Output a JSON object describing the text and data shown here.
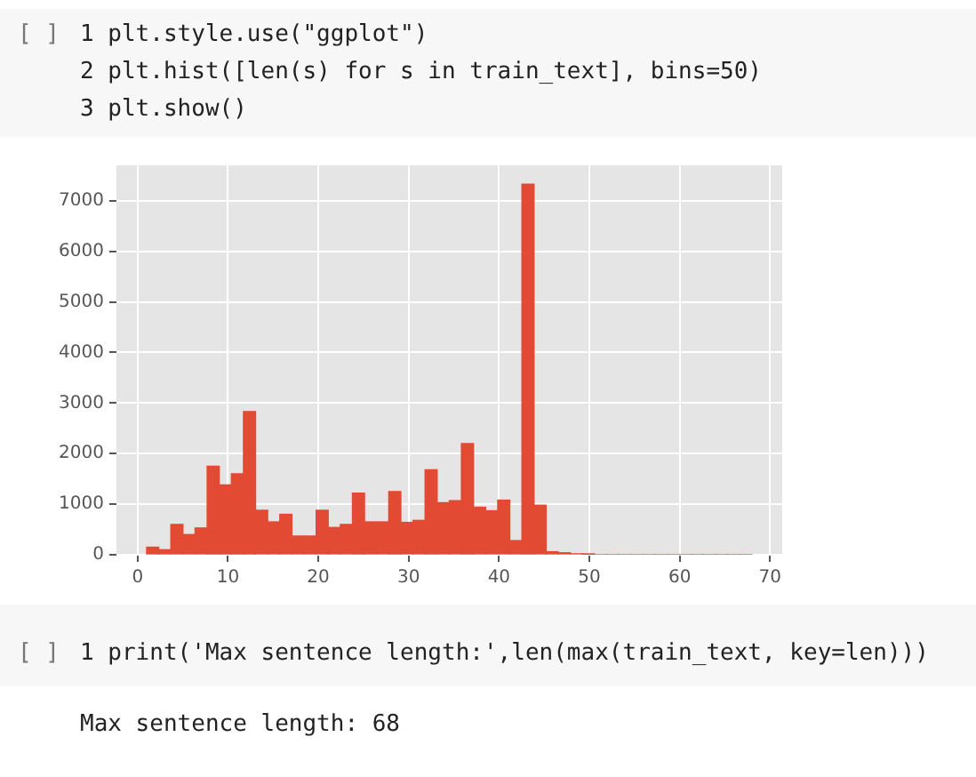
{
  "chart_data": {
    "type": "histogram",
    "bins": [
      1,
      2.34,
      3.68,
      5.02,
      6.36,
      7.7,
      9.04,
      10.38,
      11.72,
      13.06,
      14.4,
      15.74,
      17.08,
      18.42,
      19.76,
      21.1,
      22.44,
      23.78,
      25.12,
      26.46,
      27.8,
      29.14,
      30.48,
      31.82,
      33.16,
      34.5,
      35.84,
      37.18,
      38.52,
      39.86,
      41.2,
      42.54,
      43.88,
      45.22,
      46.56,
      47.9,
      49.24,
      50.58,
      51.92,
      53.26,
      54.6,
      55.94,
      57.28,
      58.62,
      59.96,
      61.3,
      62.64,
      63.98,
      65.32,
      66.66,
      68
    ],
    "values": [
      150,
      100,
      600,
      400,
      530,
      1750,
      1380,
      1600,
      2830,
      880,
      650,
      800,
      370,
      370,
      880,
      540,
      600,
      1220,
      650,
      650,
      1250,
      640,
      680,
      1680,
      1030,
      1070,
      2200,
      940,
      870,
      1080,
      280,
      7330,
      980,
      60,
      40,
      20,
      10,
      0,
      0,
      0,
      0,
      0,
      0,
      0,
      0,
      0,
      0,
      0,
      0,
      0
    ],
    "color": "#e24a33",
    "xlim": [
      -2.35,
      71.35
    ],
    "xticks": [
      0,
      10,
      20,
      30,
      40,
      50,
      60,
      70
    ],
    "ylim": [
      0,
      7700
    ],
    "yticks": [
      0,
      1000,
      2000,
      3000,
      4000,
      5000,
      6000,
      7000
    ],
    "grid": true,
    "annotations": [
      "[ ]",
      "1 plt.style.use(\"ggplot\")",
      "2 plt.hist([len(s) for s in train_text], bins=50)",
      "3 plt.show()",
      "[ ]",
      "1 print('Max sentence length:',len(max(train_text, key=len)))",
      "Max sentence length: 68"
    ]
  }
}
